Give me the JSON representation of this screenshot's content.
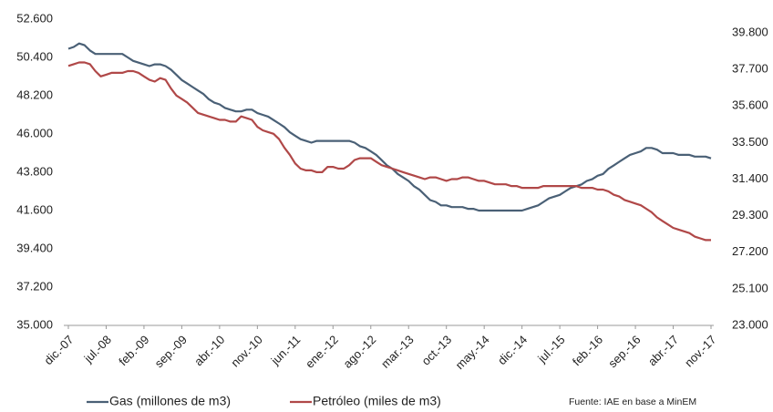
{
  "chart_data": {
    "type": "line",
    "categories": [
      "dic.-07",
      null,
      null,
      null,
      null,
      null,
      null,
      "jul.-08",
      null,
      null,
      null,
      null,
      null,
      null,
      "feb.-09",
      null,
      null,
      null,
      null,
      null,
      null,
      "sep.-09",
      null,
      null,
      null,
      null,
      null,
      null,
      "abr.-10",
      null,
      null,
      null,
      null,
      null,
      null,
      "nov.-10",
      null,
      null,
      null,
      null,
      null,
      null,
      "jun.-11",
      null,
      null,
      null,
      null,
      null,
      null,
      "ene.-12",
      null,
      null,
      null,
      null,
      null,
      null,
      "ago.-12",
      null,
      null,
      null,
      null,
      null,
      null,
      "mar.-13",
      null,
      null,
      null,
      null,
      null,
      null,
      "oct.-13",
      null,
      null,
      null,
      null,
      null,
      null,
      "may.-14",
      null,
      null,
      null,
      null,
      null,
      null,
      "dic.-14",
      null,
      null,
      null,
      null,
      null,
      null,
      "jul.-15",
      null,
      null,
      null,
      null,
      null,
      null,
      "feb.-16",
      null,
      null,
      null,
      null,
      null,
      null,
      "sep.-16",
      null,
      null,
      null,
      null,
      null,
      null,
      "abr.-17",
      null,
      null,
      null,
      null,
      null,
      null,
      "nov.-17"
    ],
    "series": [
      {
        "name": "Gas (millones de m3)",
        "color": "#4a6076",
        "values": [
          50900,
          51000,
          51200,
          51100,
          50800,
          50600,
          50600,
          50600,
          50600,
          50600,
          50600,
          50400,
          50200,
          50100,
          50000,
          49900,
          50000,
          50000,
          49900,
          49700,
          49400,
          49100,
          48900,
          48700,
          48500,
          48300,
          48000,
          47800,
          47700,
          47500,
          47400,
          47300,
          47300,
          47400,
          47400,
          47200,
          47100,
          47000,
          46800,
          46600,
          46400,
          46100,
          45900,
          45700,
          45600,
          45500,
          45600,
          45600,
          45600,
          45600,
          45600,
          45600,
          45600,
          45500,
          45300,
          45200,
          45000,
          44800,
          44500,
          44200,
          44000,
          43700,
          43500,
          43300,
          43000,
          42800,
          42500,
          42200,
          42100,
          41900,
          41900,
          41800,
          41800,
          41800,
          41700,
          41700,
          41600,
          41600,
          41600,
          41600,
          41600,
          41600,
          41600,
          41600,
          41600,
          41700,
          41800,
          41900,
          42100,
          42300,
          42400,
          42500,
          42700,
          42900,
          43000,
          43100,
          43300,
          43400,
          43600,
          43700,
          44000,
          44200,
          44400,
          44600,
          44800,
          44900,
          45000,
          45200,
          45200,
          45100,
          44900,
          44900,
          44900,
          44800,
          44800,
          44800,
          44700,
          44700,
          44700,
          44600
        ]
      },
      {
        "name": "Petróleo (miles de m3)",
        "color": "#b04848",
        "axis": "y2",
        "values": [
          37900,
          38000,
          38100,
          38100,
          38000,
          37600,
          37300,
          37400,
          37500,
          37500,
          37500,
          37600,
          37600,
          37500,
          37300,
          37100,
          37000,
          37200,
          37100,
          36600,
          36200,
          36000,
          35800,
          35500,
          35200,
          35100,
          35000,
          34900,
          34800,
          34800,
          34700,
          34700,
          35000,
          34900,
          34800,
          34400,
          34200,
          34100,
          34000,
          33700,
          33200,
          32800,
          32300,
          32000,
          31900,
          31900,
          31800,
          31800,
          32100,
          32100,
          32000,
          32000,
          32200,
          32500,
          32600,
          32600,
          32600,
          32400,
          32200,
          32100,
          32000,
          31900,
          31800,
          31700,
          31600,
          31500,
          31400,
          31500,
          31500,
          31400,
          31300,
          31400,
          31400,
          31500,
          31500,
          31400,
          31300,
          31300,
          31200,
          31100,
          31100,
          31100,
          31000,
          31000,
          30900,
          30900,
          30900,
          30900,
          31000,
          31000,
          31000,
          31000,
          31000,
          31000,
          31000,
          30900,
          30900,
          30900,
          30800,
          30800,
          30700,
          30500,
          30400,
          30200,
          30100,
          30000,
          29900,
          29700,
          29500,
          29200,
          29000,
          28800,
          28600,
          28500,
          28400,
          28300,
          28100,
          28000,
          27900,
          27900
        ]
      }
    ],
    "ylim": [
      35000,
      52600
    ],
    "yticks": [
      {
        "value": 35000,
        "label": "35.000"
      },
      {
        "value": 37200,
        "label": "37.200"
      },
      {
        "value": 39400,
        "label": "39.400"
      },
      {
        "value": 41600,
        "label": "41.600"
      },
      {
        "value": 43800,
        "label": "43.800"
      },
      {
        "value": 46000,
        "label": "46.000"
      },
      {
        "value": 48200,
        "label": "48.200"
      },
      {
        "value": 50400,
        "label": "50.400"
      },
      {
        "value": 52600,
        "label": "52.600"
      }
    ],
    "y2lim": [
      23000,
      39800
    ],
    "y2ticks": [
      {
        "value": 23000,
        "label": "23.000"
      },
      {
        "value": 25100,
        "label": "25.100"
      },
      {
        "value": 27200,
        "label": "27.200"
      },
      {
        "value": 29300,
        "label": "29.300"
      },
      {
        "value": 31400,
        "label": "31.400"
      },
      {
        "value": 33500,
        "label": "33.500"
      },
      {
        "value": 35600,
        "label": "35.600"
      },
      {
        "value": 37700,
        "label": "37.700"
      },
      {
        "value": 39800,
        "label": "39.800"
      }
    ],
    "grid": false,
    "legend": "bottom",
    "source": "Fuente: IAE en base a MinEM"
  }
}
